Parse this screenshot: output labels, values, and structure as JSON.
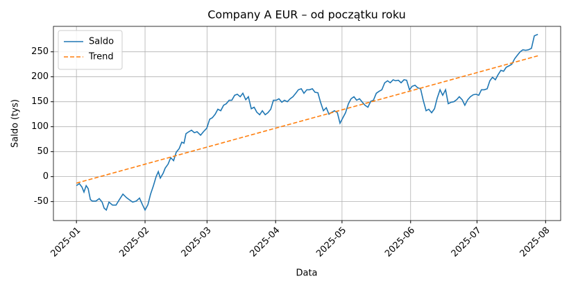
{
  "chart_data": {
    "type": "line",
    "title": "Company A EUR – od początku roku",
    "x_label": "Data",
    "y_label": "Saldo (tys)",
    "xlim": [
      -10.4,
      218.8
    ],
    "ylim": [
      -88,
      301
    ],
    "xticks": [
      {
        "value": 0,
        "label": "2025-01"
      },
      {
        "value": 31,
        "label": "2025-02"
      },
      {
        "value": 59,
        "label": "2025-03"
      },
      {
        "value": 90,
        "label": "2025-04"
      },
      {
        "value": 120,
        "label": "2025-05"
      },
      {
        "value": 151,
        "label": "2025-06"
      },
      {
        "value": 181,
        "label": "2025-07"
      },
      {
        "value": 212,
        "label": "2025-08"
      }
    ],
    "yticks": [
      -50,
      0,
      50,
      100,
      150,
      200,
      250
    ],
    "grid": true,
    "legend": "upper left",
    "series": [
      {
        "name": "Saldo",
        "color": "#1f77b4",
        "dash": "solid",
        "x": [
          0,
          1.3,
          2.5,
          3.4,
          4.4,
          5.3,
          6.3,
          7.2,
          8.8,
          10.3,
          11.6,
          12.5,
          13.5,
          14.7,
          16.3,
          17.9,
          19.4,
          21,
          22.6,
          23.8,
          25.4,
          27,
          28.5,
          29.8,
          31,
          32.3,
          33.5,
          34.8,
          36,
          37,
          37.9,
          39.2,
          40.1,
          41.4,
          42.6,
          43.9,
          45.1,
          46.4,
          47.6,
          48.6,
          49.5,
          50.8,
          52,
          53.3,
          54.5,
          56.1,
          57.4,
          58.9,
          60.2,
          61.4,
          62.7,
          63.9,
          65.2,
          66.5,
          67.7,
          69,
          70.2,
          71.5,
          72.7,
          74,
          75.2,
          76.5,
          77.7,
          79,
          80.3,
          81.5,
          82.8,
          84,
          85.3,
          86.5,
          87.8,
          89,
          90.3,
          91.5,
          92.8,
          94,
          95.3,
          96.6,
          97.8,
          99.1,
          100.3,
          101.6,
          102.8,
          104.1,
          105.3,
          106.6,
          107.8,
          109.1,
          110.3,
          111.6,
          112.9,
          114.1,
          115.4,
          116.6,
          117.9,
          119.1,
          120.4,
          121.6,
          122.9,
          124.1,
          125.4,
          126.6,
          127.9,
          129.2,
          130.4,
          131.7,
          133,
          134.2,
          135.5,
          136.8,
          138,
          139.3,
          140.6,
          141.8,
          143.1,
          144.2,
          145.5,
          146.7,
          148,
          149.2,
          150.5,
          151.7,
          153,
          154.2,
          155.5,
          156.7,
          158,
          159.2,
          160.5,
          161.8,
          163,
          164.3,
          165.5,
          166.8,
          168,
          169.3,
          170.5,
          171.8,
          173,
          174.3,
          175.5,
          176.8,
          178,
          179.3,
          180.6,
          181.8,
          183,
          184.3,
          185.6,
          186.8,
          188,
          189.3,
          190.5,
          191.8,
          193,
          194.2,
          195.5,
          196.7,
          198,
          199.2,
          200.5,
          201.7,
          203,
          204.2,
          205.6,
          206.9,
          208.5
        ],
        "values": [
          -18,
          -14,
          -21,
          -31,
          -18,
          -24,
          -46,
          -49,
          -49,
          -44,
          -51,
          -63,
          -67,
          -51,
          -57,
          -57,
          -46,
          -35,
          -42,
          -46,
          -51,
          -49,
          -43,
          -56,
          -67,
          -56,
          -35,
          -18,
          0,
          10,
          -3,
          7,
          17,
          25,
          38,
          32,
          49,
          56,
          69,
          67,
          86,
          90,
          93,
          88,
          90,
          83,
          90,
          97,
          115,
          118,
          125,
          135,
          132,
          143,
          146,
          153,
          153,
          163,
          165,
          160,
          167,
          154,
          160,
          136,
          139,
          129,
          124,
          132,
          124,
          128,
          135,
          153,
          153,
          156,
          149,
          153,
          150,
          156,
          160,
          167,
          174,
          176,
          167,
          174,
          174,
          176,
          169,
          168,
          149,
          132,
          138,
          125,
          129,
          132,
          128,
          107,
          118,
          128,
          146,
          156,
          160,
          153,
          156,
          149,
          143,
          139,
          151,
          153,
          167,
          171,
          174,
          188,
          192,
          188,
          194,
          192,
          193,
          188,
          194,
          193,
          174,
          181,
          183,
          178,
          176,
          153,
          132,
          135,
          128,
          136,
          157,
          174,
          163,
          174,
          146,
          149,
          150,
          154,
          160,
          154,
          143,
          154,
          160,
          164,
          165,
          163,
          174,
          174,
          176,
          192,
          199,
          194,
          204,
          213,
          211,
          219,
          222,
          225,
          236,
          243,
          250,
          254,
          253,
          254,
          257,
          282,
          285
        ]
      },
      {
        "name": "Trend",
        "color": "#ff7f0e",
        "dash": "dashed",
        "x": [
          0,
          208.5
        ],
        "values": [
          -13,
          242
        ]
      }
    ]
  }
}
